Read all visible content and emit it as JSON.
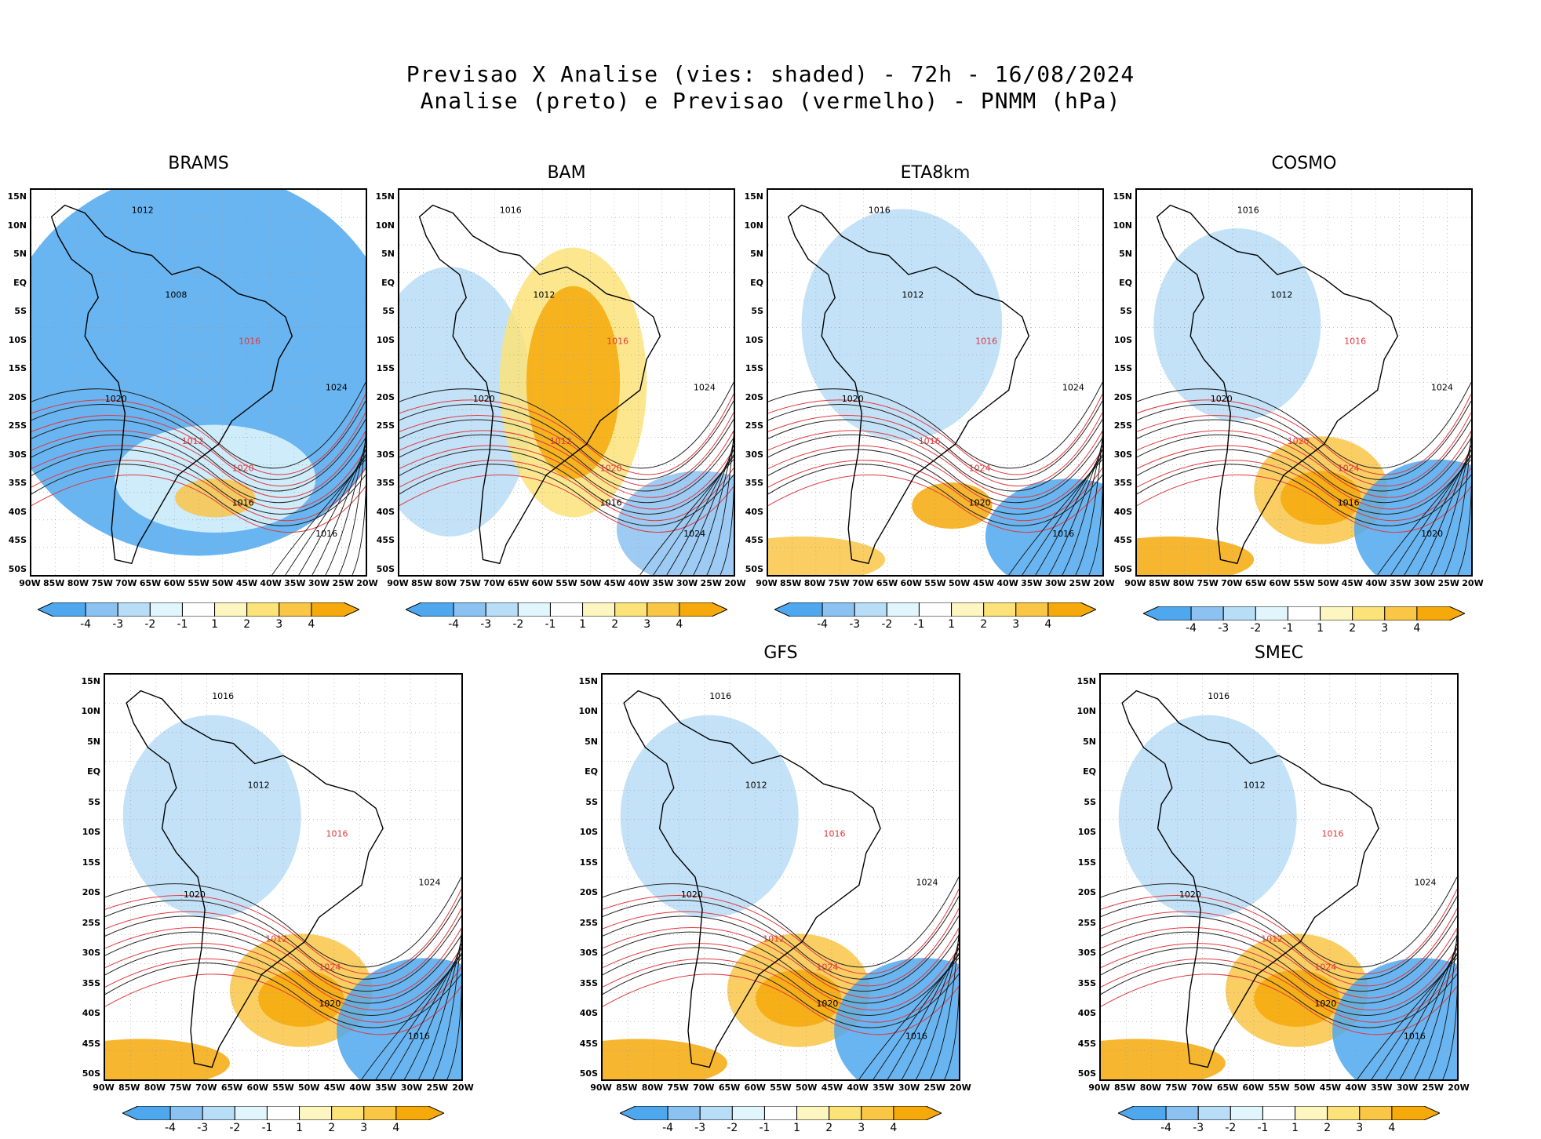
{
  "title_line1": "Previsao X Analise (vies: shaded) - 72h - 16/08/2024",
  "title_line2": "Analise (preto) e Previsao (vermelho) - PNMM (hPa)",
  "lat_labels": [
    "15N",
    "10N",
    "5N",
    "EQ",
    "5S",
    "10S",
    "15S",
    "20S",
    "25S",
    "30S",
    "35S",
    "40S",
    "45S",
    "50S"
  ],
  "lon_labels": [
    "90W",
    "85W",
    "80W",
    "75W",
    "70W",
    "65W",
    "60W",
    "55W",
    "50W",
    "45W",
    "40W",
    "35W",
    "30W",
    "25W",
    "20W"
  ],
  "colorbar": {
    "labels": [
      "-4",
      "-3",
      "-2",
      "-1",
      "1",
      "2",
      "3",
      "4"
    ],
    "colors": [
      "#4fa8ee",
      "#8cc2f2",
      "#b8ddf7",
      "#e0f6fc",
      "#ffffff",
      "#fdf6c0",
      "#fbe37a",
      "#f9c646",
      "#f5a90a"
    ]
  },
  "panels": [
    {
      "id": "brams",
      "name": "BRAMS",
      "bias": "cold",
      "isobars": [
        "1012",
        "1008",
        "1016",
        "1020",
        "1024",
        "1012",
        "1016",
        "1020",
        "1016"
      ]
    },
    {
      "id": "bam",
      "name": "BAM",
      "bias": "warm",
      "isobars": [
        "1016",
        "1012",
        "1016",
        "1020",
        "1024",
        "1012",
        "1016",
        "1020",
        "1024"
      ]
    },
    {
      "id": "eta8km",
      "name": "ETA8km",
      "bias": "mixed",
      "isobars": [
        "1016",
        "1012",
        "1016",
        "1020",
        "1024",
        "1016",
        "1020",
        "1024",
        "1016"
      ]
    },
    {
      "id": "cosmo",
      "name": "COSMO",
      "bias": "warm-south",
      "isobars": [
        "1016",
        "1012",
        "1016",
        "1020",
        "1024",
        "1020",
        "1016",
        "1024",
        "1020"
      ]
    },
    {
      "id": "model5",
      "name": "",
      "bias": "warm-south",
      "isobars": [
        "1016",
        "1012",
        "1016",
        "1020",
        "1024",
        "1012",
        "1020",
        "1024",
        "1016"
      ]
    },
    {
      "id": "gfs",
      "name": "GFS",
      "bias": "warm-south",
      "isobars": [
        "1016",
        "1012",
        "1016",
        "1020",
        "1024",
        "1012",
        "1020",
        "1024",
        "1016"
      ]
    },
    {
      "id": "smec",
      "name": "SMEC",
      "bias": "warm-south",
      "isobars": [
        "1016",
        "1012",
        "1016",
        "1020",
        "1024",
        "1012",
        "1020",
        "1024",
        "1016"
      ]
    }
  ]
}
